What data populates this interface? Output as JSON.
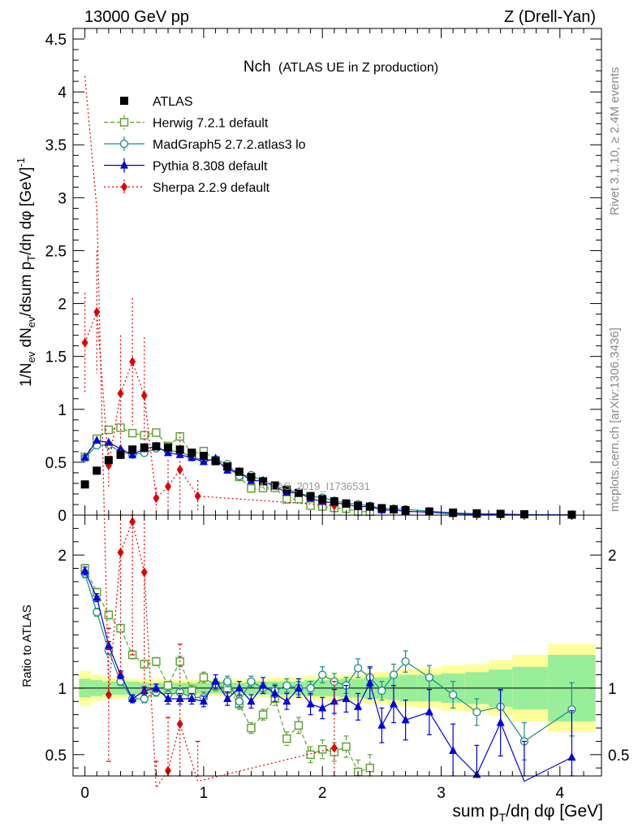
{
  "header": {
    "left": "13000 GeV pp",
    "right": "Z (Drell-Yan)"
  },
  "side_labels": {
    "rivet": "Rivet 3.1.10, ≥ 2.4M events",
    "mcplots": "mcplots.cern.ch [arXiv:1306.3436]"
  },
  "chart_data": {
    "type": "scatter",
    "title": "Nch",
    "subtitle": "(ATLAS UE in Z production)",
    "watermark": "ATLAS_2019_I1736531",
    "xlabel": "sum p_T/dη dφ [GeV]",
    "ylabel": "1/N_ev dN_ev/dsum p_T/dη dφ [GeV]^-1",
    "ratio_ylabel": "Ratio to ATLAS",
    "xlim": [
      -0.1,
      4.35
    ],
    "ylim": [
      0,
      4.6
    ],
    "ratio_ylim": [
      0.34,
      2.3
    ],
    "xticks": [
      {
        "v": 0,
        "label": "0"
      },
      {
        "v": 1,
        "label": "1"
      },
      {
        "v": 2,
        "label": "2"
      },
      {
        "v": 3,
        "label": "3"
      },
      {
        "v": 4,
        "label": "4"
      }
    ],
    "yticks": [
      {
        "v": 0,
        "label": "0"
      },
      {
        "v": 0.5,
        "label": "0.5"
      },
      {
        "v": 1,
        "label": "1"
      },
      {
        "v": 1.5,
        "label": "1.5"
      },
      {
        "v": 2,
        "label": "2"
      },
      {
        "v": 2.5,
        "label": "2.5"
      },
      {
        "v": 3,
        "label": "3"
      },
      {
        "v": 3.5,
        "label": "3.5"
      },
      {
        "v": 4,
        "label": "4"
      },
      {
        "v": 4.5,
        "label": "4.5"
      }
    ],
    "ratio_yticks": [
      {
        "v": 0.5,
        "label": "0.5"
      },
      {
        "v": 1,
        "label": "1"
      },
      {
        "v": 2,
        "label": "2"
      }
    ],
    "legend_position": "top-left",
    "colors": {
      "data": "#000000",
      "herwig": "#5aa02c",
      "madgraph": "#1a8a8a",
      "pythia": "#0000dd",
      "sherpa": "#e00000",
      "band_inner": "#99ee99",
      "band_outer": "#ffff99"
    },
    "data": {
      "name": "ATLAS",
      "x": [
        0,
        0.1,
        0.2,
        0.3,
        0.4,
        0.5,
        0.6,
        0.7,
        0.8,
        0.9,
        1.0,
        1.1,
        1.2,
        1.3,
        1.4,
        1.5,
        1.6,
        1.7,
        1.8,
        1.9,
        2.0,
        2.1,
        2.2,
        2.3,
        2.4,
        2.5,
        2.6,
        2.7,
        2.9,
        3.1,
        3.3,
        3.5,
        3.7,
        4.1
      ],
      "y": [
        0.29,
        0.42,
        0.52,
        0.57,
        0.62,
        0.64,
        0.65,
        0.64,
        0.62,
        0.59,
        0.56,
        0.51,
        0.46,
        0.41,
        0.36,
        0.32,
        0.28,
        0.24,
        0.21,
        0.18,
        0.15,
        0.13,
        0.11,
        0.09,
        0.08,
        0.066,
        0.055,
        0.046,
        0.034,
        0.024,
        0.017,
        0.012,
        0.008,
        0.004
      ],
      "band_inner": [
        0.07,
        0.06,
        0.05,
        0.05,
        0.05,
        0.04,
        0.04,
        0.04,
        0.04,
        0.04,
        0.04,
        0.04,
        0.04,
        0.04,
        0.05,
        0.05,
        0.05,
        0.05,
        0.05,
        0.06,
        0.06,
        0.06,
        0.07,
        0.07,
        0.08,
        0.08,
        0.09,
        0.1,
        0.1,
        0.11,
        0.12,
        0.14,
        0.16,
        0.25
      ],
      "band_outer": [
        0.13,
        0.1,
        0.08,
        0.08,
        0.07,
        0.07,
        0.07,
        0.06,
        0.06,
        0.06,
        0.06,
        0.06,
        0.06,
        0.07,
        0.07,
        0.07,
        0.08,
        0.08,
        0.08,
        0.09,
        0.09,
        0.1,
        0.1,
        0.1,
        0.12,
        0.12,
        0.13,
        0.14,
        0.15,
        0.17,
        0.18,
        0.21,
        0.25,
        0.33
      ]
    },
    "series": [
      {
        "key": "herwig",
        "name": "Herwig 7.2.1 default",
        "marker": "square-open",
        "dash": "5,3",
        "x": [
          0,
          0.1,
          0.2,
          0.3,
          0.4,
          0.5,
          0.6,
          0.7,
          0.8,
          0.9,
          1.0,
          1.1,
          1.2,
          1.3,
          1.4,
          1.5,
          1.6,
          1.7,
          1.8,
          1.9,
          2.0,
          2.1,
          2.2,
          2.3,
          2.4
        ],
        "ratio": [
          1.9,
          1.72,
          1.55,
          1.45,
          1.25,
          1.18,
          1.2,
          1.02,
          1.2,
          0.98,
          1.08,
          1.02,
          1.0,
          0.88,
          0.7,
          0.8,
          0.92,
          0.62,
          0.72,
          0.5,
          0.54,
          0.52,
          0.56,
          0.37,
          0.4
        ],
        "ratio_err": [
          0.03,
          0.03,
          0.03,
          0.03,
          0.03,
          0.03,
          0.03,
          0.03,
          0.04,
          0.04,
          0.04,
          0.04,
          0.04,
          0.04,
          0.04,
          0.04,
          0.05,
          0.05,
          0.06,
          0.06,
          0.07,
          0.07,
          0.08,
          0.09,
          0.1
        ]
      },
      {
        "key": "madgraph",
        "name": "MadGraph5 2.7.2.atlas3 lo",
        "marker": "circle-open",
        "dash": "",
        "x": [
          0,
          0.1,
          0.2,
          0.3,
          0.4,
          0.5,
          0.6,
          0.7,
          0.8,
          0.9,
          1.0,
          1.1,
          1.2,
          1.3,
          1.4,
          1.5,
          1.6,
          1.7,
          1.8,
          1.9,
          2.0,
          2.1,
          2.2,
          2.3,
          2.4,
          2.5,
          2.6,
          2.7,
          2.9,
          3.1,
          3.3,
          3.5,
          3.7,
          4.1
        ],
        "ratio": [
          1.86,
          1.57,
          1.28,
          1.05,
          0.92,
          0.92,
          0.97,
          0.95,
          0.97,
          0.93,
          0.93,
          1.03,
          1.05,
          0.9,
          1.05,
          1.0,
          0.98,
          1.02,
          1.0,
          1.0,
          1.1,
          1.05,
          1.02,
          1.15,
          1.08,
          0.98,
          1.1,
          1.2,
          1.08,
          0.95,
          0.82,
          0.86,
          0.6,
          0.84
        ],
        "ratio_err": [
          0.03,
          0.03,
          0.03,
          0.03,
          0.03,
          0.03,
          0.03,
          0.03,
          0.03,
          0.03,
          0.04,
          0.04,
          0.04,
          0.04,
          0.04,
          0.04,
          0.05,
          0.05,
          0.05,
          0.05,
          0.06,
          0.06,
          0.06,
          0.07,
          0.07,
          0.07,
          0.08,
          0.08,
          0.09,
          0.1,
          0.1,
          0.12,
          0.14,
          0.2
        ]
      },
      {
        "key": "pythia",
        "name": "Pythia 8.308 default",
        "marker": "triangle",
        "dash": "",
        "x": [
          0,
          0.1,
          0.2,
          0.3,
          0.4,
          0.5,
          0.6,
          0.7,
          0.8,
          0.9,
          1.0,
          1.1,
          1.2,
          1.3,
          1.4,
          1.5,
          1.6,
          1.7,
          1.8,
          1.9,
          2.0,
          2.1,
          2.2,
          2.3,
          2.4,
          2.5,
          2.6,
          2.7,
          2.9,
          3.1,
          3.3,
          3.5,
          3.7,
          4.1
        ],
        "ratio": [
          1.88,
          1.68,
          1.32,
          1.1,
          0.92,
          0.98,
          1.0,
          0.92,
          0.92,
          0.92,
          0.9,
          1.05,
          0.92,
          1.0,
          0.9,
          1.02,
          0.96,
          0.9,
          1.0,
          0.88,
          0.85,
          0.9,
          0.92,
          0.86,
          1.04,
          0.72,
          0.88,
          0.76,
          0.82,
          0.53,
          0.35,
          0.74,
          0.3,
          0.48
        ],
        "ratio_err": [
          0.03,
          0.03,
          0.03,
          0.03,
          0.03,
          0.03,
          0.03,
          0.04,
          0.04,
          0.04,
          0.04,
          0.05,
          0.05,
          0.05,
          0.05,
          0.06,
          0.06,
          0.06,
          0.07,
          0.08,
          0.08,
          0.09,
          0.1,
          0.1,
          0.12,
          0.13,
          0.14,
          0.15,
          0.17,
          0.2,
          0.22,
          0.25,
          0.3,
          0.35
        ]
      },
      {
        "key": "sherpa",
        "name": "Sherpa 2.2.9 default",
        "marker": "diamond",
        "dash": "2,3",
        "x": [
          0,
          0.1,
          0.2,
          0.3,
          0.4,
          0.5,
          0.6,
          0.7,
          0.8,
          0.95,
          2.1
        ],
        "y": [
          1.63,
          1.92,
          0.47,
          1.15,
          1.45,
          1.13,
          0.16,
          0.27,
          0.43,
          0.18,
          0.09
        ],
        "y_err": [
          0.47,
          0.58,
          0.2,
          0.55,
          0.6,
          0.55,
          0.1,
          0.25,
          0.35,
          0.15,
          0.05
        ],
        "ratio": [
          5.6,
          4.6,
          0.95,
          2.02,
          2.25,
          1.87,
          0.25,
          0.38,
          0.73,
          0.3,
          0.55
        ],
        "ratio_err": [
          1.6,
          1.4,
          0.5,
          0.9,
          1.0,
          0.9,
          0.2,
          0.4,
          0.6,
          0.3,
          0.5
        ]
      }
    ]
  }
}
